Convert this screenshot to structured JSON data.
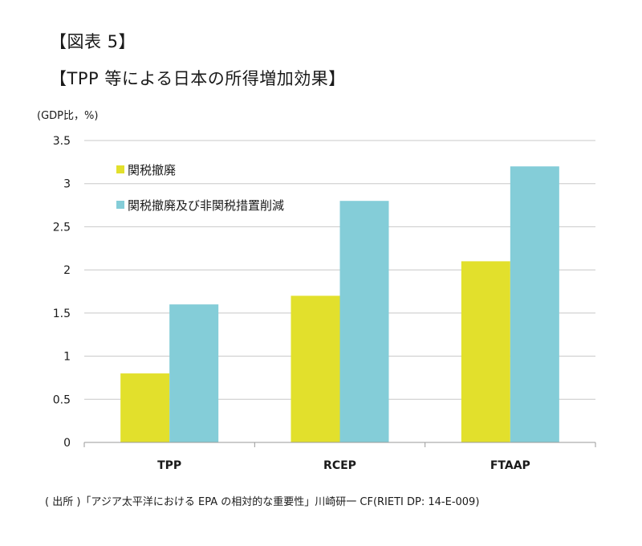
{
  "figure_label": "【図表 5】",
  "figure_title": "【TPP 等による日本の所得増加効果】",
  "unit_label": "(GDP比，%)",
  "source": "( 出所 )「アジア太平洋における EPA の相対的な重要性」川崎研一 CF(RIETI DP: 14-E-009)",
  "chart_data": {
    "type": "bar",
    "categories": [
      "TPP",
      "RCEP",
      "FTAAP"
    ],
    "series": [
      {
        "name": "関税撤廃",
        "values": [
          0.8,
          1.7,
          2.1
        ],
        "color": "#e2e02c"
      },
      {
        "name": "関税撤廃及び非関税措置削減",
        "values": [
          1.6,
          2.8,
          3.2
        ],
        "color": "#84cdd8"
      }
    ],
    "ylim": [
      0,
      3.5
    ],
    "yticks": [
      0,
      0.5,
      1,
      1.5,
      2,
      2.5,
      3,
      3.5
    ],
    "ytick_labels": [
      "0",
      "0.5",
      "1",
      "1.5",
      "2",
      "2.5",
      "3",
      "3.5"
    ],
    "grid": true,
    "legend": "top-left"
  }
}
